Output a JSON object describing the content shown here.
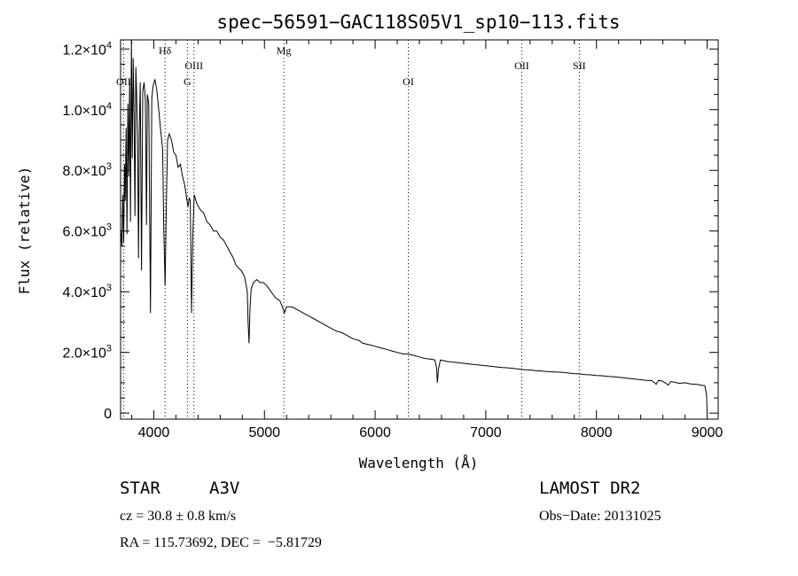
{
  "chart_data": {
    "type": "line",
    "title": "spec−56591−GAC118S05V1_sp10−113.fits",
    "xlabel": "Wavelength (Å)",
    "ylabel": "Flux (relative)",
    "xlim": [
      3700,
      9100
    ],
    "ylim": [
      -200,
      12300
    ],
    "x_ticks": [
      4000,
      5000,
      6000,
      7000,
      8000,
      9000
    ],
    "x_tick_labels": [
      "4000",
      "5000",
      "6000",
      "7000",
      "8000",
      "9000"
    ],
    "y_ticks": [
      0,
      2000,
      4000,
      6000,
      8000,
      10000,
      12000
    ],
    "y_tick_labels": [
      {
        "mant": "0",
        "exp": ""
      },
      {
        "mant": "2.0×10",
        "exp": "3"
      },
      {
        "mant": "4.0×10",
        "exp": "3"
      },
      {
        "mant": "6.0×10",
        "exp": "3"
      },
      {
        "mant": "8.0×10",
        "exp": "3"
      },
      {
        "mant": "1.0×10",
        "exp": "4"
      },
      {
        "mant": "1.2×10",
        "exp": "4"
      }
    ],
    "grid": false,
    "series": [
      {
        "points": [
          [
            3700,
            6100
          ],
          [
            3712,
            5500
          ],
          [
            3720,
            7200
          ],
          [
            3728,
            5600
          ],
          [
            3735,
            8200
          ],
          [
            3742,
            7000
          ],
          [
            3750,
            9400
          ],
          [
            3758,
            5900
          ],
          [
            3766,
            10200
          ],
          [
            3774,
            7800
          ],
          [
            3782,
            11000
          ],
          [
            3790,
            6300
          ],
          [
            3798,
            12300
          ],
          [
            3806,
            8400
          ],
          [
            3814,
            11700
          ],
          [
            3822,
            9800
          ],
          [
            3830,
            6500
          ],
          [
            3838,
            11400
          ],
          [
            3846,
            10400
          ],
          [
            3854,
            9000
          ],
          [
            3862,
            5100
          ],
          [
            3870,
            9500
          ],
          [
            3878,
            10900
          ],
          [
            3889,
            4700
          ],
          [
            3900,
            10600
          ],
          [
            3912,
            10900
          ],
          [
            3924,
            10300
          ],
          [
            3934,
            6200
          ],
          [
            3942,
            10500
          ],
          [
            3955,
            10200
          ],
          [
            3970,
            3300
          ],
          [
            3982,
            10400
          ],
          [
            3995,
            10800
          ],
          [
            4010,
            11000
          ],
          [
            4025,
            10700
          ],
          [
            4040,
            10200
          ],
          [
            4060,
            9400
          ],
          [
            4080,
            8700
          ],
          [
            4090,
            6100
          ],
          [
            4102,
            4200
          ],
          [
            4112,
            6500
          ],
          [
            4125,
            9000
          ],
          [
            4140,
            9200
          ],
          [
            4160,
            9000
          ],
          [
            4180,
            8600
          ],
          [
            4200,
            8500
          ],
          [
            4220,
            8100
          ],
          [
            4240,
            8200
          ],
          [
            4260,
            7800
          ],
          [
            4280,
            7500
          ],
          [
            4300,
            7000
          ],
          [
            4310,
            6800
          ],
          [
            4320,
            7100
          ],
          [
            4330,
            7000
          ],
          [
            4341,
            3300
          ],
          [
            4352,
            5800
          ],
          [
            4365,
            7200
          ],
          [
            4390,
            6900
          ],
          [
            4420,
            6700
          ],
          [
            4450,
            6600
          ],
          [
            4480,
            6300
          ],
          [
            4510,
            6200
          ],
          [
            4540,
            6000
          ],
          [
            4570,
            6000
          ],
          [
            4600,
            5800
          ],
          [
            4630,
            5700
          ],
          [
            4660,
            5500
          ],
          [
            4690,
            5300
          ],
          [
            4720,
            5100
          ],
          [
            4740,
            4900
          ],
          [
            4760,
            4800
          ],
          [
            4790,
            4700
          ],
          [
            4820,
            4500
          ],
          [
            4845,
            4000
          ],
          [
            4852,
            3000
          ],
          [
            4861,
            2300
          ],
          [
            4870,
            3500
          ],
          [
            4880,
            4100
          ],
          [
            4900,
            4300
          ],
          [
            4930,
            4400
          ],
          [
            4960,
            4300
          ],
          [
            4990,
            4300
          ],
          [
            5020,
            4200
          ],
          [
            5060,
            4000
          ],
          [
            5100,
            3800
          ],
          [
            5140,
            3700
          ],
          [
            5172,
            3400
          ],
          [
            5180,
            3300
          ],
          [
            5200,
            3500
          ],
          [
            5250,
            3500
          ],
          [
            5300,
            3400
          ],
          [
            5350,
            3300
          ],
          [
            5400,
            3200
          ],
          [
            5450,
            3100
          ],
          [
            5500,
            3000
          ],
          [
            5550,
            2900
          ],
          [
            5600,
            2800
          ],
          [
            5650,
            2700
          ],
          [
            5700,
            2650
          ],
          [
            5750,
            2550
          ],
          [
            5800,
            2450
          ],
          [
            5850,
            2400
          ],
          [
            5890,
            2300
          ],
          [
            5950,
            2250
          ],
          [
            6000,
            2200
          ],
          [
            6050,
            2150
          ],
          [
            6100,
            2100
          ],
          [
            6150,
            2050
          ],
          [
            6200,
            2000
          ],
          [
            6250,
            1950
          ],
          [
            6300,
            1950
          ],
          [
            6350,
            1900
          ],
          [
            6400,
            1850
          ],
          [
            6450,
            1800
          ],
          [
            6500,
            1780
          ],
          [
            6540,
            1750
          ],
          [
            6555,
            1500
          ],
          [
            6563,
            1000
          ],
          [
            6572,
            1450
          ],
          [
            6590,
            1750
          ],
          [
            6650,
            1700
          ],
          [
            6700,
            1680
          ],
          [
            6750,
            1660
          ],
          [
            6800,
            1640
          ],
          [
            6850,
            1620
          ],
          [
            6900,
            1600
          ],
          [
            6950,
            1580
          ],
          [
            7000,
            1560
          ],
          [
            7050,
            1540
          ],
          [
            7100,
            1520
          ],
          [
            7150,
            1500
          ],
          [
            7200,
            1490
          ],
          [
            7250,
            1470
          ],
          [
            7300,
            1450
          ],
          [
            7350,
            1430
          ],
          [
            7400,
            1420
          ],
          [
            7450,
            1400
          ],
          [
            7500,
            1390
          ],
          [
            7550,
            1370
          ],
          [
            7600,
            1360
          ],
          [
            7650,
            1350
          ],
          [
            7700,
            1340
          ],
          [
            7750,
            1320
          ],
          [
            7800,
            1300
          ],
          [
            7850,
            1290
          ],
          [
            7900,
            1270
          ],
          [
            7950,
            1260
          ],
          [
            8000,
            1240
          ],
          [
            8050,
            1230
          ],
          [
            8100,
            1210
          ],
          [
            8150,
            1200
          ],
          [
            8200,
            1180
          ],
          [
            8250,
            1160
          ],
          [
            8300,
            1140
          ],
          [
            8350,
            1120
          ],
          [
            8400,
            1100
          ],
          [
            8450,
            1080
          ],
          [
            8500,
            1070
          ],
          [
            8540,
            950
          ],
          [
            8560,
            1080
          ],
          [
            8600,
            1050
          ],
          [
            8650,
            920
          ],
          [
            8670,
            1040
          ],
          [
            8700,
            1020
          ],
          [
            8750,
            980
          ],
          [
            8800,
            1000
          ],
          [
            8850,
            960
          ],
          [
            8900,
            950
          ],
          [
            8950,
            920
          ],
          [
            8980,
            900
          ],
          [
            8995,
            600
          ],
          [
            9000,
            0
          ]
        ]
      }
    ],
    "annotations": [
      {
        "label": "OII",
        "x": 3727,
        "row": 2
      },
      {
        "label": "Hδ",
        "x": 4102,
        "row": 0
      },
      {
        "label": "OIII",
        "x": 4363,
        "row": 1
      },
      {
        "label": "G",
        "x": 4304,
        "row": 2
      },
      {
        "label": "Mg",
        "x": 5175,
        "row": 0
      },
      {
        "label": "OI",
        "x": 6300,
        "row": 2
      },
      {
        "label": "OII",
        "x": 7325,
        "row": 1
      },
      {
        "label": "SII",
        "x": 7845,
        "row": 1
      }
    ]
  },
  "info": {
    "object_type": "STAR",
    "subclass": "A3V",
    "survey": "LAMOST DR2",
    "redshift": "cz = 30.8 ± 0.8 km/s",
    "obs_date": "Obs−Date: 20131025",
    "coords": "RA = 115.73692, DEC =  −5.81729"
  }
}
